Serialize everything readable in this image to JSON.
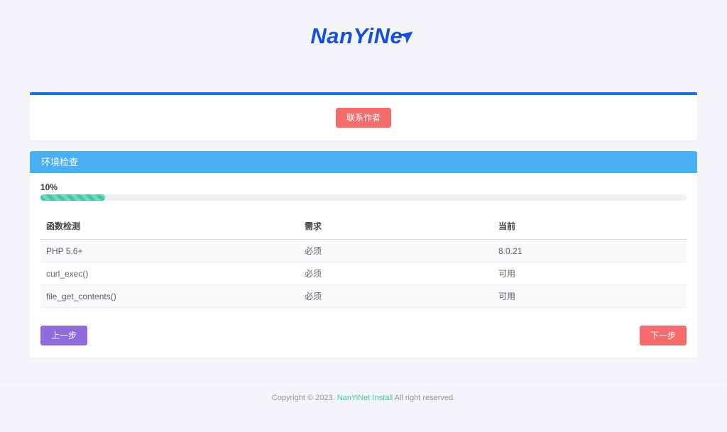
{
  "logo": {
    "text": "NanYiNe",
    "arrow_glyph": "➤"
  },
  "contact_card": {
    "button_label": "联系作者"
  },
  "panel": {
    "title": "环境检查",
    "progress": {
      "label": "10%",
      "percent": 10
    },
    "table": {
      "headers": [
        "函数检测",
        "需求",
        "当前"
      ],
      "rows": [
        {
          "name": "PHP 5.6+",
          "requirement": "必须",
          "current": "8.0.21"
        },
        {
          "name": "curl_exec()",
          "requirement": "必须",
          "current": "可用"
        },
        {
          "name": "file_get_contents()",
          "requirement": "必须",
          "current": "可用"
        }
      ]
    },
    "prev_button": "上一步",
    "next_button": "下一步"
  },
  "footer": {
    "copyright_prefix": "Copyright © 2023.",
    "link_text": "NanYiNet Install",
    "copyright_suffix": "All right reserved."
  },
  "colors": {
    "page_background": "#f4f5f9",
    "accent_line_blue": "#1672ec",
    "panel_header_blue": "#4aaef3",
    "danger_red": "#f56c6c",
    "purple": "#8f6bdc",
    "progress_teal": "#41c6a8",
    "success_green": "#67c23a",
    "logo_blue": "#1350de",
    "footer_link_teal": "#45c3a8"
  }
}
